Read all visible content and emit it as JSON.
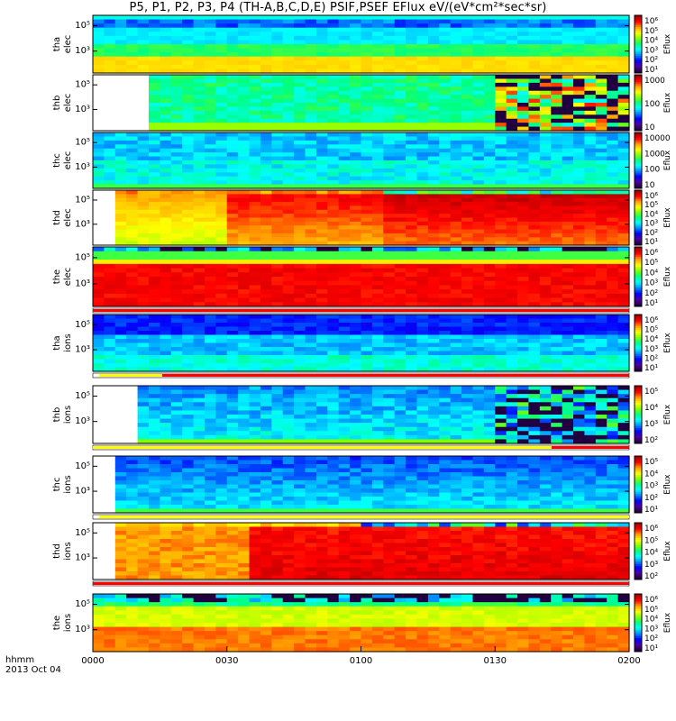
{
  "title": "P5, P1, P2, P3, P4 (TH-A,B,C,D,E) PSIF,PSEF EFlux eV/(eV*cm²*sec*sr)",
  "xaxis": {
    "label_line1": "hhmm",
    "label_line2": "2013 Oct 04",
    "ticks": [
      "0000",
      "0030",
      "0100",
      "0130",
      "0200"
    ]
  },
  "panels": [
    {
      "ylabel1": "tha",
      "ylabel2": "elec",
      "yticks": [
        "10⁵",
        "10³"
      ],
      "cb_label": "Eflux",
      "cb_ticks": [
        "10⁶",
        "10⁵",
        "10⁴",
        "10³",
        "10²",
        "10¹"
      ],
      "flag": "none"
    },
    {
      "ylabel1": "thb",
      "ylabel2": "elec",
      "yticks": [
        "10⁵",
        "10³"
      ],
      "cb_label": "Eflux",
      "cb_ticks": [
        "1000",
        "100",
        "10"
      ],
      "flag": "none"
    },
    {
      "ylabel1": "thc",
      "ylabel2": "elec",
      "yticks": [
        "10⁵",
        "10³"
      ],
      "cb_label": "Eflux",
      "cb_ticks": [
        "10000",
        "1000",
        "100",
        "10"
      ],
      "flag": "none"
    },
    {
      "ylabel1": "thd",
      "ylabel2": "elec",
      "yticks": [
        "10⁵",
        "10³"
      ],
      "cb_label": "Eflux",
      "cb_ticks": [
        "10⁶",
        "10⁵",
        "10⁴",
        "10³",
        "10²",
        "10¹"
      ],
      "flag": "none"
    },
    {
      "ylabel1": "the",
      "ylabel2": "elec",
      "yticks": [
        "10⁵",
        "10³"
      ],
      "cb_label": "Eflux",
      "cb_ticks": [
        "10⁶",
        "10⁵",
        "10⁴",
        "10³",
        "10²",
        "10¹"
      ],
      "flag": "red"
    },
    {
      "ylabel1": "tha",
      "ylabel2": "ions",
      "yticks": [
        "10⁵",
        "10³"
      ],
      "cb_label": "Eflux",
      "cb_ticks": [
        "10⁶",
        "10⁵",
        "10⁴",
        "10³",
        "10²",
        "10¹"
      ],
      "flag": "yellow-red"
    },
    {
      "ylabel1": "thb",
      "ylabel2": "ions",
      "yticks": [
        "10⁵",
        "10³"
      ],
      "cb_label": "Eflux",
      "cb_ticks": [
        "10⁵",
        "10⁴",
        "10³",
        "10²"
      ],
      "flag": "yellow-red-late"
    },
    {
      "ylabel1": "thc",
      "ylabel2": "ions",
      "yticks": [
        "10⁵",
        "10³"
      ],
      "cb_label": "Eflux",
      "cb_ticks": [
        "10⁵",
        "10⁴",
        "10³",
        "10²",
        "10¹"
      ],
      "flag": "yellow"
    },
    {
      "ylabel1": "thd",
      "ylabel2": "ions",
      "yticks": [
        "10⁵",
        "10³"
      ],
      "cb_label": "Eflux",
      "cb_ticks": [
        "10⁶",
        "10⁵",
        "10⁴",
        "10³",
        "10²"
      ],
      "flag": "red"
    },
    {
      "ylabel1": "the",
      "ylabel2": "ions",
      "yticks": [
        "10⁵",
        "10³"
      ],
      "cb_label": "Eflux",
      "cb_ticks": [
        "10⁶",
        "10⁵",
        "10⁴",
        "10³",
        "10²",
        "10¹"
      ],
      "flag": "none"
    }
  ],
  "chart_data": {
    "type": "heatmap",
    "title": "P5, P1, P2, P3, P4 (TH-A,B,C,D,E) PSIF,PSEF EFlux eV/(eV*cm²*sec*sr)",
    "x_range": [
      "0000",
      "0200"
    ],
    "x_ticks": [
      "0000",
      "0030",
      "0100",
      "0130",
      "0200"
    ],
    "y_scale": "log",
    "colormap": [
      "#200040",
      "#5000a0",
      "#0000ff",
      "#0088ff",
      "#00ffff",
      "#00ff80",
      "#80ff00",
      "#ffff00",
      "#ffa000",
      "#ff0000",
      "#a00000"
    ],
    "series": [
      {
        "probe": "tha",
        "species": "elec",
        "data_start": "0000",
        "pattern": "flat"
      },
      {
        "probe": "thb",
        "species": "elec",
        "data_start": "0013",
        "pattern": "flat, noisy after 0130"
      },
      {
        "probe": "thc",
        "species": "elec",
        "data_start": "0000",
        "pattern": "flat"
      },
      {
        "probe": "thd",
        "species": "elec",
        "data_start": "0004",
        "pattern": "high flux"
      },
      {
        "probe": "the",
        "species": "elec",
        "data_start": "0000",
        "pattern": "high flux"
      },
      {
        "probe": "tha",
        "species": "ions",
        "data_start": "0000",
        "pattern": "flat"
      },
      {
        "probe": "thb",
        "species": "ions",
        "data_start": "0009",
        "pattern": "flat, noisy after 0130"
      },
      {
        "probe": "thc",
        "species": "ions",
        "data_start": "0005",
        "pattern": "flat"
      },
      {
        "probe": "thd",
        "species": "ions",
        "data_start": "0004",
        "pattern": "high flux"
      },
      {
        "probe": "the",
        "species": "ions",
        "data_start": "0000",
        "pattern": "high flux"
      }
    ]
  }
}
